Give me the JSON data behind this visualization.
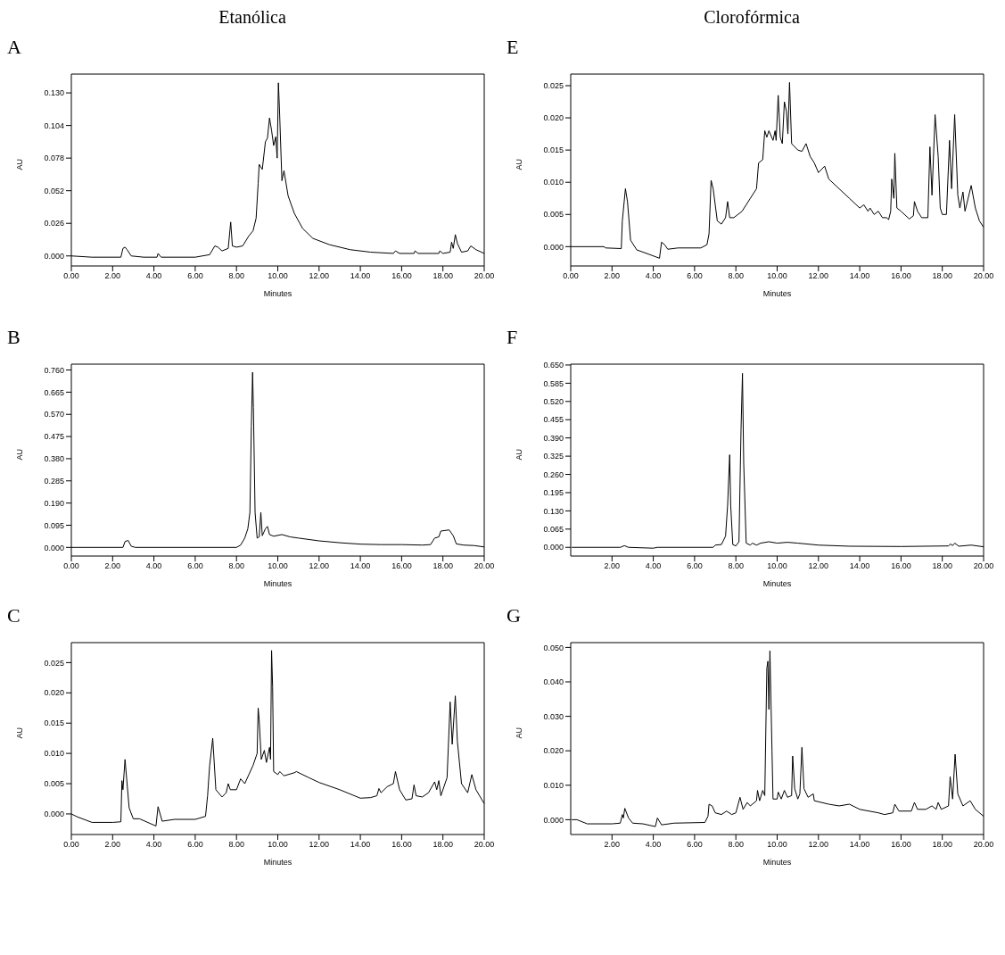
{
  "chart_data": [
    {
      "type": "line",
      "title": "Etanólica",
      "subtitle": "A",
      "xlabel": "Minutes",
      "ylabel": "AU",
      "color": "#000000",
      "xlim": [
        0,
        20
      ],
      "xticks": [
        {
          "value": 0,
          "label": "0.00"
        },
        {
          "value": 2,
          "label": "2.00"
        },
        {
          "value": 4,
          "label": "4.00"
        },
        {
          "value": 6,
          "label": "6.00"
        },
        {
          "value": 8,
          "label": "8.00"
        },
        {
          "value": 10,
          "label": "10.00"
        },
        {
          "value": 12,
          "label": "12.00"
        },
        {
          "value": 14,
          "label": "14.00"
        },
        {
          "value": 16,
          "label": "16.00"
        },
        {
          "value": 18,
          "label": "18.00"
        },
        {
          "value": 20,
          "label": "20.00"
        }
      ],
      "ylim": [
        -0.008,
        0.145
      ],
      "yticks": [
        {
          "value": 0,
          "label": "0.000"
        },
        {
          "value": 0.026,
          "label": "0.026"
        },
        {
          "value": 0.052,
          "label": "0.052"
        },
        {
          "value": 0.078,
          "label": "0.078"
        },
        {
          "value": 0.104,
          "label": "0.104"
        },
        {
          "value": 0.13,
          "label": "0.130"
        }
      ],
      "x": [
        0,
        1,
        2.4,
        2.5,
        2.6,
        2.7,
        2.9,
        3.5,
        4.15,
        4.2,
        4.35,
        6,
        6.7,
        6.95,
        7.1,
        7.3,
        7.6,
        7.72,
        7.8,
        8,
        8.3,
        8.6,
        8.8,
        8.95,
        9.05,
        9.1,
        9.25,
        9.4,
        9.5,
        9.6,
        9.7,
        9.8,
        9.9,
        9.97,
        10.03,
        10.08,
        10.2,
        10.3,
        10.5,
        10.8,
        11.2,
        11.7,
        12.5,
        13.5,
        14.5,
        15.6,
        15.7,
        15.9,
        16.6,
        16.65,
        16.8,
        17.8,
        17.85,
        18,
        18.35,
        18.42,
        18.5,
        18.6,
        18.7,
        18.9,
        19.2,
        19.35,
        19.6,
        20
      ],
      "values": [
        0,
        -0.001,
        -0.001,
        0.006,
        0.007,
        0.005,
        0,
        -0.001,
        -0.001,
        0.002,
        -0.001,
        -0.001,
        0.001,
        0.008,
        0.007,
        0.004,
        0.006,
        0.027,
        0.008,
        0.007,
        0.008,
        0.016,
        0.02,
        0.03,
        0.058,
        0.073,
        0.069,
        0.091,
        0.094,
        0.11,
        0.1,
        0.088,
        0.095,
        0.078,
        0.138,
        0.118,
        0.06,
        0.068,
        0.048,
        0.034,
        0.022,
        0.014,
        0.009,
        0.005,
        0.003,
        0.002,
        0.004,
        0.002,
        0.002,
        0.004,
        0.002,
        0.002,
        0.004,
        0.002,
        0.003,
        0.011,
        0.006,
        0.017,
        0.01,
        0.003,
        0.004,
        0.008,
        0.005,
        0.002
      ]
    },
    {
      "type": "line",
      "title": "Clorofórmica",
      "subtitle": "E",
      "xlabel": "Minutes",
      "ylabel": "AU",
      "color": "#000000",
      "xlim": [
        0,
        20
      ],
      "xticks": [
        {
          "value": 0,
          "label": "0.00"
        },
        {
          "value": 2,
          "label": "2.00"
        },
        {
          "value": 4,
          "label": "4.00"
        },
        {
          "value": 6,
          "label": "6.00"
        },
        {
          "value": 8,
          "label": "8.00"
        },
        {
          "value": 10,
          "label": "10.00"
        },
        {
          "value": 12,
          "label": "12.00"
        },
        {
          "value": 14,
          "label": "14.00"
        },
        {
          "value": 16,
          "label": "16.00"
        },
        {
          "value": 18,
          "label": "18.00"
        },
        {
          "value": 20,
          "label": "20.00"
        }
      ],
      "ylim": [
        -0.003,
        0.0268
      ],
      "yticks": [
        {
          "value": 0,
          "label": "0.000"
        },
        {
          "value": 0.005,
          "label": "0.005"
        },
        {
          "value": 0.01,
          "label": "0.010"
        },
        {
          "value": 0.015,
          "label": "0.015"
        },
        {
          "value": 0.02,
          "label": "0.020"
        },
        {
          "value": 0.025,
          "label": "0.025"
        }
      ],
      "x": [
        0,
        1.6,
        1.7,
        2.45,
        2.5,
        2.65,
        2.75,
        2.9,
        3.2,
        3.8,
        4.3,
        4.4,
        4.55,
        4.7,
        5.2,
        6.3,
        6.6,
        6.7,
        6.8,
        6.9,
        7.1,
        7.3,
        7.5,
        7.6,
        7.7,
        7.9,
        8.3,
        8.7,
        9,
        9.1,
        9.3,
        9.4,
        9.5,
        9.6,
        9.8,
        9.9,
        9.95,
        10.05,
        10.15,
        10.25,
        10.35,
        10.45,
        10.52,
        10.6,
        10.7,
        11,
        11.2,
        11.4,
        11.6,
        11.8,
        12,
        12.3,
        12.5,
        13,
        13.5,
        14,
        14.2,
        14.4,
        14.5,
        14.7,
        14.9,
        15.1,
        15.3,
        15.4,
        15.5,
        15.55,
        15.65,
        15.7,
        15.8,
        16,
        16.4,
        16.6,
        16.65,
        16.8,
        17,
        17.3,
        17.4,
        17.5,
        17.65,
        17.8,
        17.9,
        18,
        18.2,
        18.35,
        18.45,
        18.6,
        18.75,
        18.85,
        19,
        19.1,
        19.4,
        19.6,
        19.8,
        20
      ],
      "values": [
        0,
        0,
        -0.0002,
        -0.0003,
        0.004,
        0.009,
        0.007,
        0.001,
        -0.0005,
        -0.0012,
        -0.0018,
        0.0007,
        0.0003,
        -0.0004,
        -0.0002,
        -0.0002,
        0.0003,
        0.002,
        0.0103,
        0.009,
        0.004,
        0.0035,
        0.0045,
        0.007,
        0.0045,
        0.0045,
        0.0055,
        0.0075,
        0.009,
        0.013,
        0.0135,
        0.018,
        0.017,
        0.018,
        0.0165,
        0.018,
        0.0165,
        0.0235,
        0.017,
        0.016,
        0.0225,
        0.021,
        0.0175,
        0.0255,
        0.016,
        0.015,
        0.0148,
        0.016,
        0.014,
        0.013,
        0.0115,
        0.0125,
        0.0105,
        0.009,
        0.0075,
        0.006,
        0.0065,
        0.0055,
        0.006,
        0.005,
        0.0055,
        0.0045,
        0.0045,
        0.0042,
        0.0055,
        0.0105,
        0.0075,
        0.0145,
        0.006,
        0.0055,
        0.0043,
        0.0048,
        0.007,
        0.0055,
        0.0045,
        0.0045,
        0.0155,
        0.008,
        0.0205,
        0.014,
        0.006,
        0.005,
        0.005,
        0.0165,
        0.009,
        0.0205,
        0.008,
        0.006,
        0.0085,
        0.0055,
        0.0095,
        0.006,
        0.004,
        0.003
      ]
    },
    {
      "type": "line",
      "title": "B",
      "xlabel": "Minutes",
      "ylabel": "AU",
      "color": "#000000",
      "xlim": [
        0,
        20
      ],
      "xticks": [
        {
          "value": 0,
          "label": "0.00"
        },
        {
          "value": 2,
          "label": "2.00"
        },
        {
          "value": 4,
          "label": "4.00"
        },
        {
          "value": 6,
          "label": "6.00"
        },
        {
          "value": 8,
          "label": "8.00"
        },
        {
          "value": 10,
          "label": "10.00"
        },
        {
          "value": 12,
          "label": "12.00"
        },
        {
          "value": 14,
          "label": "14.00"
        },
        {
          "value": 16,
          "label": "16.00"
        },
        {
          "value": 18,
          "label": "18.00"
        },
        {
          "value": 20,
          "label": "20.00"
        }
      ],
      "ylim": [
        -0.037,
        0.785
      ],
      "yticks": [
        {
          "value": 0,
          "label": "0.000"
        },
        {
          "value": 0.095,
          "label": "0.095"
        },
        {
          "value": 0.19,
          "label": "0.190"
        },
        {
          "value": 0.285,
          "label": "0.285"
        },
        {
          "value": 0.38,
          "label": "0.380"
        },
        {
          "value": 0.475,
          "label": "0.475"
        },
        {
          "value": 0.57,
          "label": "0.570"
        },
        {
          "value": 0.665,
          "label": "0.665"
        },
        {
          "value": 0.76,
          "label": "0.760"
        }
      ],
      "x": [
        0,
        2.5,
        2.6,
        2.75,
        2.9,
        3.1,
        8,
        8.2,
        8.4,
        8.55,
        8.65,
        8.72,
        8.78,
        8.82,
        8.9,
        9,
        9.1,
        9.18,
        9.25,
        9.4,
        9.5,
        9.6,
        9.8,
        10.2,
        10.6,
        11,
        12,
        13,
        14,
        15,
        16,
        17,
        17.4,
        17.6,
        17.8,
        17.9,
        18.3,
        18.5,
        18.65,
        19,
        19.5,
        20
      ],
      "values": [
        0,
        0,
        0.025,
        0.03,
        0.005,
        0,
        0,
        0.01,
        0.04,
        0.08,
        0.15,
        0.52,
        0.75,
        0.6,
        0.15,
        0.04,
        0.045,
        0.15,
        0.05,
        0.08,
        0.09,
        0.055,
        0.048,
        0.055,
        0.045,
        0.04,
        0.028,
        0.02,
        0.014,
        0.012,
        0.012,
        0.01,
        0.012,
        0.04,
        0.045,
        0.07,
        0.075,
        0.05,
        0.015,
        0.01,
        0.008,
        0.002
      ]
    },
    {
      "type": "line",
      "title": "F",
      "xlabel": "Minutes",
      "ylabel": "AU",
      "color": "#000000",
      "xlim": [
        0,
        20
      ],
      "xticks": [
        {
          "value": 2,
          "label": "2.00"
        },
        {
          "value": 4,
          "label": "4.00"
        },
        {
          "value": 6,
          "label": "6.00"
        },
        {
          "value": 8,
          "label": "8.00"
        },
        {
          "value": 10,
          "label": "10.00"
        },
        {
          "value": 12,
          "label": "12.00"
        },
        {
          "value": 14,
          "label": "14.00"
        },
        {
          "value": 16,
          "label": "16.00"
        },
        {
          "value": 18,
          "label": "18.00"
        },
        {
          "value": 20,
          "label": "20.00"
        }
      ],
      "ylim": [
        -0.031,
        0.653
      ],
      "yticks": [
        {
          "value": 0,
          "label": "0.000"
        },
        {
          "value": 0.065,
          "label": "0.065"
        },
        {
          "value": 0.13,
          "label": "0.130"
        },
        {
          "value": 0.195,
          "label": "0.195"
        },
        {
          "value": 0.26,
          "label": "0.260"
        },
        {
          "value": 0.325,
          "label": "0.325"
        },
        {
          "value": 0.39,
          "label": "0.390"
        },
        {
          "value": 0.455,
          "label": "0.455"
        },
        {
          "value": 0.52,
          "label": "0.520"
        },
        {
          "value": 0.585,
          "label": "0.585"
        },
        {
          "value": 0.65,
          "label": "0.650"
        }
      ],
      "x": [
        0.05,
        2.4,
        2.6,
        2.8,
        4,
        4.2,
        6.9,
        7,
        7.3,
        7.5,
        7.6,
        7.7,
        7.75,
        7.85,
        8,
        8.15,
        8.25,
        8.32,
        8.38,
        8.5,
        8.7,
        8.8,
        9,
        9.2,
        9.6,
        10,
        10.5,
        11,
        12,
        13.5,
        16,
        18.3,
        18.4,
        18.5,
        18.6,
        18.8,
        19.4,
        20
      ],
      "values": [
        0,
        0,
        0.006,
        0,
        -0.003,
        0,
        0,
        0.008,
        0.01,
        0.04,
        0.15,
        0.33,
        0.15,
        0.01,
        0.005,
        0.02,
        0.42,
        0.62,
        0.3,
        0.015,
        0.008,
        0.015,
        0.008,
        0.015,
        0.02,
        0.015,
        0.018,
        0.015,
        0.008,
        0.004,
        0.003,
        0.005,
        0.012,
        0.006,
        0.015,
        0.004,
        0.008,
        0.002
      ]
    },
    {
      "type": "line",
      "title": "C",
      "xlabel": "Minutes",
      "ylabel": "AU",
      "color": "#000000",
      "xlim": [
        0,
        20
      ],
      "xticks": [
        {
          "value": 0,
          "label": "0.00"
        },
        {
          "value": 2,
          "label": "2.00"
        },
        {
          "value": 4,
          "label": "4.00"
        },
        {
          "value": 6,
          "label": "6.00"
        },
        {
          "value": 8,
          "label": "8.00"
        },
        {
          "value": 10,
          "label": "10.00"
        },
        {
          "value": 12,
          "label": "12.00"
        },
        {
          "value": 14,
          "label": "14.00"
        },
        {
          "value": 16,
          "label": "16.00"
        },
        {
          "value": 18,
          "label": "18.00"
        },
        {
          "value": 20,
          "label": "20.00"
        }
      ],
      "ylim": [
        -0.0034,
        0.0283
      ],
      "yticks": [
        {
          "value": 0,
          "label": "0.000"
        },
        {
          "value": 0.005,
          "label": "0.005"
        },
        {
          "value": 0.01,
          "label": "0.010"
        },
        {
          "value": 0.015,
          "label": "0.015"
        },
        {
          "value": 0.02,
          "label": "0.020"
        },
        {
          "value": 0.025,
          "label": "0.025"
        }
      ],
      "x": [
        0,
        0.3,
        1,
        2,
        2.4,
        2.45,
        2.5,
        2.6,
        2.8,
        3,
        3.3,
        4.1,
        4.2,
        4.4,
        5,
        6,
        6.5,
        6.6,
        6.7,
        6.85,
        7,
        7.3,
        7.5,
        7.6,
        7.7,
        8,
        8.2,
        8.4,
        8.6,
        8.8,
        9,
        9.05,
        9.1,
        9.2,
        9.35,
        9.45,
        9.6,
        9.65,
        9.7,
        9.75,
        9.8,
        10,
        10.1,
        10.3,
        10.8,
        10.9,
        11.5,
        12,
        13,
        14,
        14.5,
        14.8,
        14.9,
        15,
        15.3,
        15.6,
        15.7,
        15.9,
        16.2,
        16.5,
        16.6,
        16.7,
        17,
        17.3,
        17.6,
        17.7,
        17.8,
        17.9,
        18.2,
        18.35,
        18.45,
        18.6,
        18.7,
        18.9,
        19.2,
        19.4,
        19.6,
        20
      ],
      "values": [
        0,
        -0.0005,
        -0.0014,
        -0.0014,
        -0.0013,
        0.0055,
        0.004,
        0.009,
        0.001,
        -0.0008,
        -0.0008,
        -0.002,
        0.0012,
        -0.0012,
        -0.0009,
        -0.0009,
        -0.0004,
        0.003,
        0.008,
        0.0125,
        0.004,
        0.0028,
        0.0035,
        0.005,
        0.004,
        0.004,
        0.0058,
        0.005,
        0.0065,
        0.008,
        0.01,
        0.0175,
        0.0155,
        0.009,
        0.0105,
        0.0085,
        0.011,
        0.009,
        0.027,
        0.021,
        0.007,
        0.0065,
        0.007,
        0.0063,
        0.0068,
        0.007,
        0.006,
        0.0052,
        0.004,
        0.0026,
        0.0027,
        0.003,
        0.0042,
        0.0035,
        0.0045,
        0.005,
        0.007,
        0.004,
        0.0023,
        0.0025,
        0.0048,
        0.003,
        0.0028,
        0.0035,
        0.0053,
        0.004,
        0.0055,
        0.003,
        0.006,
        0.0185,
        0.0115,
        0.0195,
        0.012,
        0.005,
        0.0035,
        0.0065,
        0.004,
        0.0017
      ]
    },
    {
      "type": "line",
      "title": "G",
      "xlabel": "Minutes",
      "ylabel": "AU",
      "color": "#000000",
      "xlim": [
        0,
        20
      ],
      "xticks": [
        {
          "value": 2,
          "label": "2.00"
        },
        {
          "value": 4,
          "label": "4.00"
        },
        {
          "value": 6,
          "label": "6.00"
        },
        {
          "value": 8,
          "label": "8.00"
        },
        {
          "value": 10,
          "label": "10.00"
        },
        {
          "value": 12,
          "label": "12.00"
        },
        {
          "value": 14,
          "label": "14.00"
        },
        {
          "value": 16,
          "label": "16.00"
        },
        {
          "value": 18,
          "label": "18.00"
        },
        {
          "value": 20,
          "label": "20.00"
        }
      ],
      "ylim": [
        -0.0043,
        0.0514
      ],
      "yticks": [
        {
          "value": 0,
          "label": "0.000"
        },
        {
          "value": 0.01,
          "label": "0.010"
        },
        {
          "value": 0.02,
          "label": "0.020"
        },
        {
          "value": 0.03,
          "label": "0.030"
        },
        {
          "value": 0.04,
          "label": "0.040"
        },
        {
          "value": 0.05,
          "label": "0.050"
        }
      ],
      "x": [
        0.05,
        0.3,
        0.8,
        2,
        2.4,
        2.5,
        2.55,
        2.62,
        2.8,
        3,
        3.5,
        4.1,
        4.2,
        4.4,
        5,
        6.5,
        6.65,
        6.7,
        6.85,
        7,
        7.3,
        7.55,
        7.8,
        8,
        8.2,
        8.35,
        8.55,
        8.7,
        9,
        9.05,
        9.15,
        9.3,
        9.4,
        9.5,
        9.55,
        9.6,
        9.65,
        9.75,
        9.8,
        10,
        10.05,
        10.2,
        10.35,
        10.5,
        10.7,
        10.75,
        10.85,
        11,
        11.1,
        11.2,
        11.3,
        11.5,
        11.75,
        11.8,
        12.5,
        13,
        13.5,
        14,
        14.9,
        15.2,
        15.6,
        15.7,
        15.9,
        16.5,
        16.65,
        16.8,
        17.2,
        17.5,
        17.7,
        17.8,
        17.95,
        18.3,
        18.38,
        18.5,
        18.62,
        18.75,
        19,
        19.35,
        19.6,
        20
      ],
      "values": [
        0,
        0,
        -0.0012,
        -0.0012,
        -0.001,
        0.0015,
        0.0005,
        0.0033,
        0.0005,
        -0.001,
        -0.0012,
        -0.002,
        0.0005,
        -0.0015,
        -0.001,
        -0.0008,
        0.001,
        0.0045,
        0.004,
        0.002,
        0.0015,
        0.0025,
        0.0015,
        0.002,
        0.0065,
        0.003,
        0.005,
        0.004,
        0.0055,
        0.0085,
        0.0055,
        0.0085,
        0.007,
        0.044,
        0.046,
        0.032,
        0.049,
        0.02,
        0.006,
        0.006,
        0.008,
        0.006,
        0.0085,
        0.0065,
        0.007,
        0.0185,
        0.009,
        0.006,
        0.0075,
        0.021,
        0.009,
        0.0065,
        0.0075,
        0.0055,
        0.0045,
        0.004,
        0.0045,
        0.003,
        0.002,
        0.0015,
        0.002,
        0.0045,
        0.0025,
        0.0025,
        0.005,
        0.003,
        0.003,
        0.004,
        0.003,
        0.005,
        0.003,
        0.004,
        0.0125,
        0.006,
        0.019,
        0.0075,
        0.004,
        0.0055,
        0.003,
        0.001
      ]
    }
  ]
}
